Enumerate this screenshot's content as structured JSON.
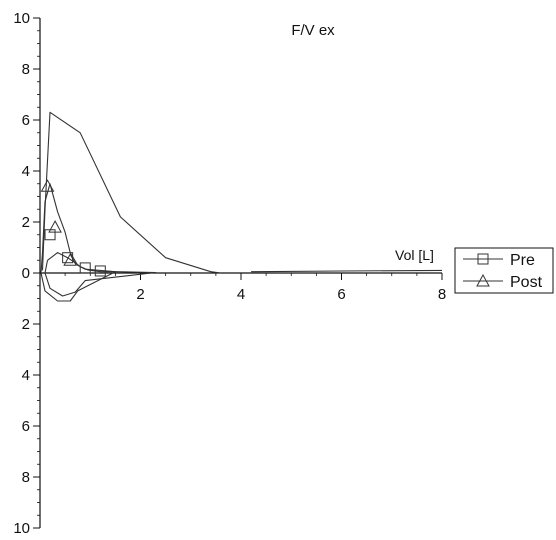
{
  "chart_data": {
    "type": "line",
    "title": "F/V ex",
    "xlabel": "Vol [L]",
    "ylabel": "",
    "xlim": [
      0,
      8
    ],
    "ylim": [
      -10,
      10
    ],
    "x_ticks": [
      2,
      4,
      6,
      8
    ],
    "y_ticks": [
      10,
      8,
      6,
      4,
      2,
      0,
      -2,
      -4,
      -6,
      -8,
      -10
    ],
    "y_tick_labels": [
      "10",
      "8",
      "6",
      "4",
      "2",
      "0",
      "2",
      "4",
      "6",
      "8",
      "10"
    ],
    "grid": false,
    "legend_position": "right",
    "series": [
      {
        "name": "Pre",
        "marker": "square",
        "points": [
          [
            0.15,
            0.5
          ],
          [
            0.35,
            0.8
          ],
          [
            0.55,
            0.6
          ],
          [
            0.7,
            0.4
          ],
          [
            0.8,
            0.25
          ],
          [
            0.95,
            0.12
          ],
          [
            1.2,
            0.05
          ],
          [
            1.5,
            0.05
          ],
          [
            2.3,
            0.02
          ],
          [
            0.9,
            -0.3
          ],
          [
            0.7,
            -0.75
          ],
          [
            0.45,
            -0.9
          ],
          [
            0.2,
            -0.6
          ],
          [
            0.1,
            0.0
          ],
          [
            0.15,
            0.5
          ]
        ],
        "marker_points": [
          [
            0.2,
            1.5
          ],
          [
            0.55,
            0.6
          ],
          [
            0.9,
            0.2
          ],
          [
            1.2,
            0.08
          ]
        ]
      },
      {
        "name": "Post",
        "marker": "triangle",
        "points": [
          [
            0.05,
            0.8
          ],
          [
            0.1,
            2.8
          ],
          [
            0.2,
            3.5
          ],
          [
            0.35,
            2.4
          ],
          [
            0.5,
            1.6
          ],
          [
            0.6,
            0.8
          ],
          [
            0.75,
            0.3
          ],
          [
            0.9,
            0.15
          ],
          [
            1.5,
            0.05
          ],
          [
            0.75,
            -0.7
          ],
          [
            0.6,
            -1.1
          ],
          [
            0.35,
            -1.1
          ],
          [
            0.1,
            -0.7
          ],
          [
            0.02,
            0.0
          ],
          [
            0.05,
            0.8
          ]
        ],
        "marker_points": [
          [
            0.15,
            3.4
          ],
          [
            0.3,
            1.8
          ],
          [
            0.6,
            0.5
          ]
        ]
      },
      {
        "name": "",
        "marker": "none",
        "points": [
          [
            0.05,
            0.1
          ],
          [
            0.1,
            2.5
          ],
          [
            0.2,
            6.3
          ],
          [
            0.8,
            5.5
          ],
          [
            1.6,
            2.2
          ],
          [
            2.5,
            0.6
          ],
          [
            3.4,
            0.05
          ],
          [
            3.6,
            0.0
          ]
        ]
      },
      {
        "name": "",
        "marker": "none",
        "points": [
          [
            4.2,
            0.05
          ],
          [
            6.0,
            0.08
          ],
          [
            8.0,
            0.1
          ]
        ]
      }
    ]
  }
}
